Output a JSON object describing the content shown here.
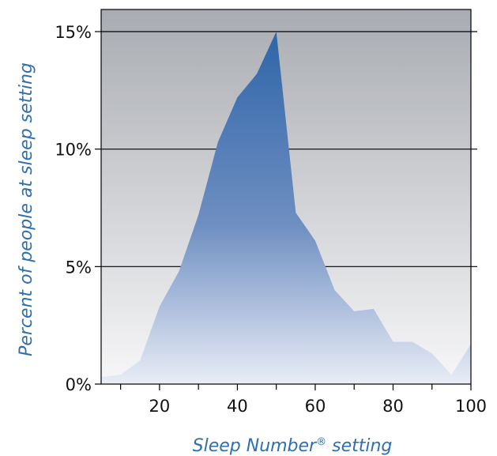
{
  "colors": {
    "area_top": "#2f65a8",
    "area_bottom": "#e9edf6",
    "background_top": "#a9acb2",
    "background_bottom": "#f7f7f8",
    "axis_title": "#2f6fad",
    "gridline": "#000000"
  },
  "chart_data": {
    "type": "area",
    "xlabel": "Sleep Number® setting",
    "ylabel": "Percent of people at sleep setting",
    "xlim": [
      5,
      100
    ],
    "ylim": [
      0,
      16
    ],
    "x_ticks": [
      20,
      40,
      60,
      80,
      100
    ],
    "x_tick_labels": [
      "20",
      "40",
      "60",
      "80",
      "100"
    ],
    "x_minor_ticks": [
      10,
      30,
      50,
      70,
      90
    ],
    "y_ticks": [
      0,
      5,
      10,
      15
    ],
    "y_tick_labels": [
      "0%",
      "5%",
      "10%",
      "15%"
    ],
    "grid": "horizontal",
    "x": [
      5,
      10,
      15,
      20,
      25,
      30,
      35,
      40,
      45,
      50,
      55,
      60,
      65,
      70,
      75,
      80,
      85,
      90,
      95,
      100
    ],
    "values": [
      0.3,
      0.4,
      1.0,
      3.3,
      4.8,
      7.2,
      10.3,
      12.2,
      13.2,
      15.0,
      7.3,
      6.1,
      4.0,
      3.1,
      3.2,
      1.8,
      1.8,
      1.3,
      0.4,
      1.7
    ]
  }
}
